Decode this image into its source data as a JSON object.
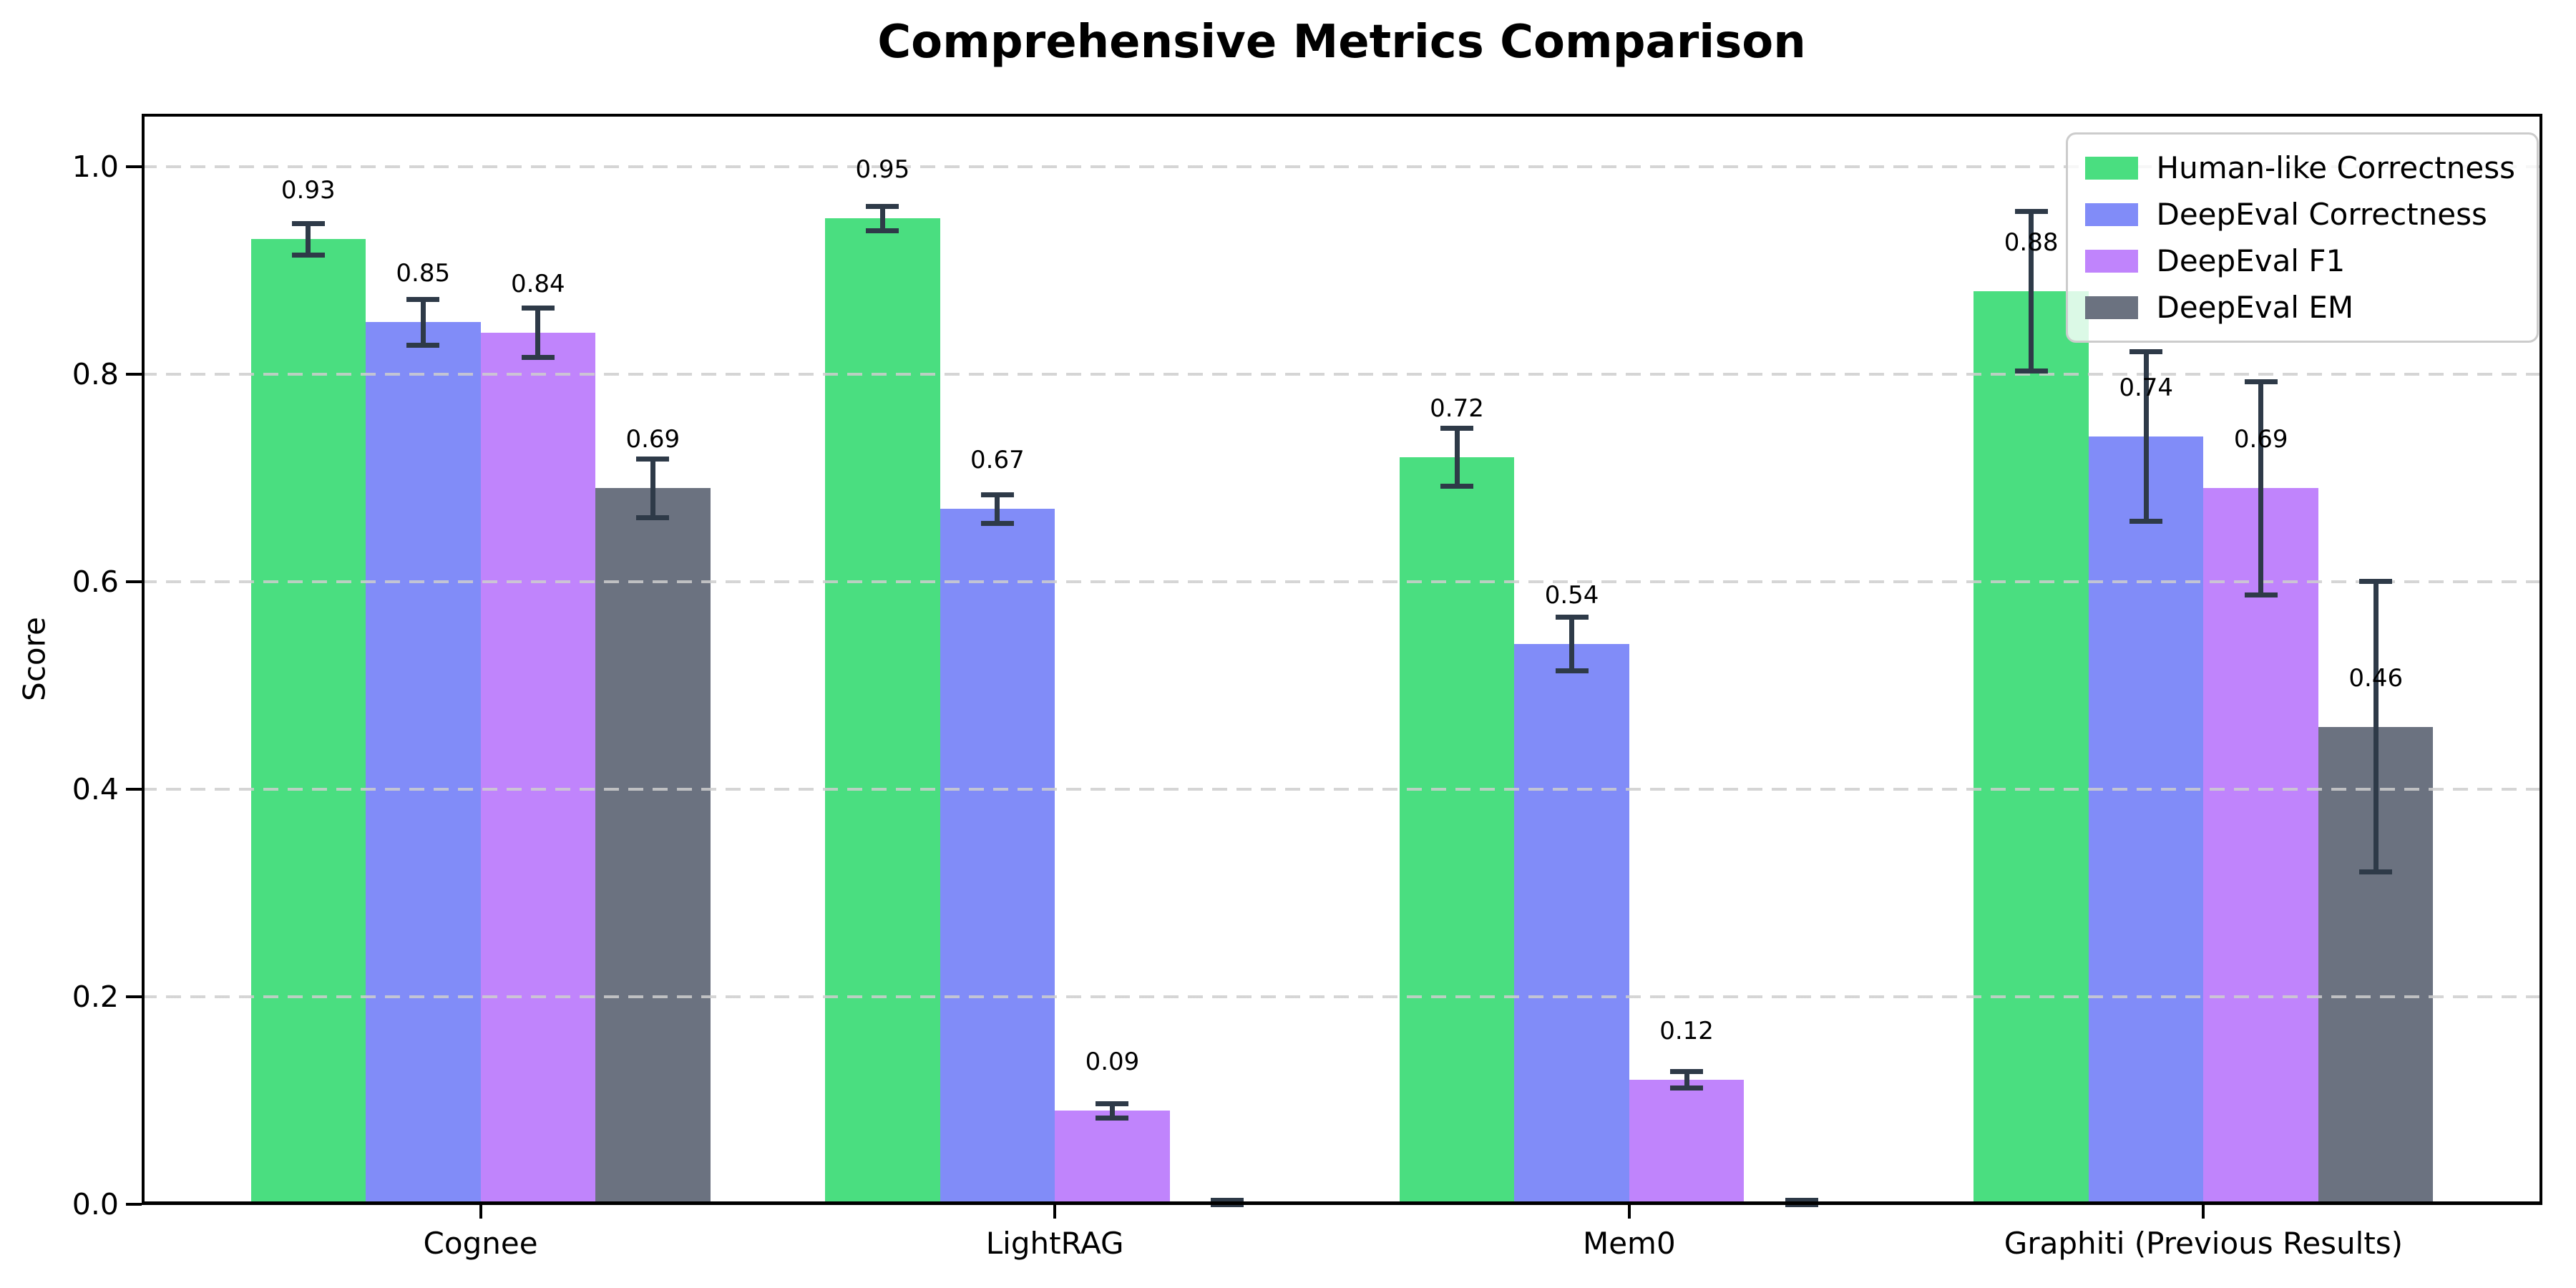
{
  "chart_data": {
    "type": "bar",
    "title": "Comprehensive Metrics Comparison",
    "ylabel": "Score",
    "xlabel": "",
    "categories": [
      "Cognee",
      "LightRAG",
      "Mem0",
      "Graphiti (Previous Results)"
    ],
    "series": [
      {
        "name": "Human-like Correctness",
        "color": "#4ade80",
        "values": [
          0.93,
          0.95,
          0.72,
          0.88
        ],
        "errors": [
          0.015,
          0.012,
          0.028,
          0.077
        ],
        "labels": [
          "0.93",
          "0.95",
          "0.72",
          "0.88"
        ]
      },
      {
        "name": "DeepEval Correctness",
        "color": "#818cf8",
        "values": [
          0.85,
          0.67,
          0.54,
          0.74
        ],
        "errors": [
          0.022,
          0.014,
          0.026,
          0.082
        ],
        "labels": [
          "0.85",
          "0.67",
          "0.54",
          "0.74"
        ]
      },
      {
        "name": "DeepEval F1",
        "color": "#c084fc",
        "values": [
          0.84,
          0.09,
          0.12,
          0.69
        ],
        "errors": [
          0.024,
          0.007,
          0.008,
          0.103
        ],
        "labels": [
          "0.84",
          "0.09",
          "0.12",
          "0.69"
        ]
      },
      {
        "name": "DeepEval EM",
        "color": "#6b7280",
        "values": [
          0.69,
          0.0,
          0.0,
          0.46
        ],
        "errors": [
          0.028,
          0.004,
          0.004,
          0.14
        ],
        "labels": [
          "0.69",
          "",
          "",
          "0.46"
        ]
      }
    ],
    "yticks": [
      {
        "value": 0.0,
        "label": "0.0"
      },
      {
        "value": 0.2,
        "label": "0.2"
      },
      {
        "value": 0.4,
        "label": "0.4"
      },
      {
        "value": 0.6,
        "label": "0.6"
      },
      {
        "value": 0.8,
        "label": "0.8"
      },
      {
        "value": 1.0,
        "label": "1.0"
      }
    ],
    "ylim": [
      0,
      1.051
    ],
    "xlim": [
      -0.59,
      3.59
    ],
    "bar_width": 0.2,
    "grid": "horizontal-dashed",
    "legend_position": "upper-right",
    "error_bar_color": "#2e3a48",
    "grid_color": "#cecece"
  }
}
